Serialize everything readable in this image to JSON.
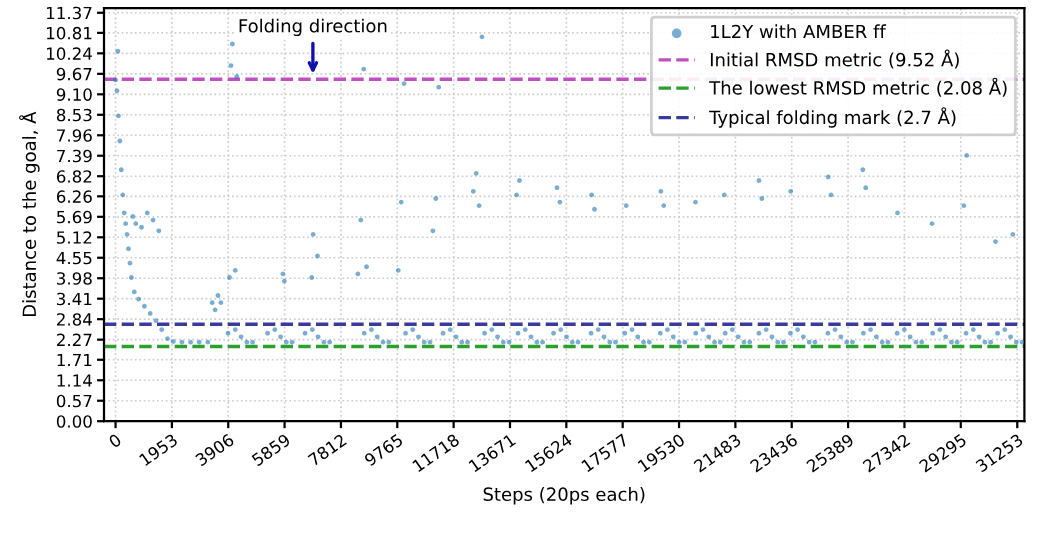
{
  "chart_data": {
    "type": "scatter",
    "xlabel": "Steps (20ps each)",
    "ylabel": "Distance to the goal, Å",
    "xlim": [
      -400,
      31500
    ],
    "ylim": [
      0,
      11.5
    ],
    "xticks": [
      0,
      1953,
      3906,
      5859,
      7812,
      9765,
      11718,
      13671,
      15624,
      17577,
      19530,
      21483,
      23436,
      25389,
      27342,
      29295,
      31253
    ],
    "yticks": [
      {
        "value": 0,
        "label": "0.00"
      },
      0.57,
      1.14,
      1.71,
      2.27,
      2.84,
      3.41,
      3.98,
      4.55,
      5.12,
      5.69,
      6.26,
      6.82,
      7.39,
      7.96,
      8.53,
      {
        "value": 9.1,
        "label": "9.10"
      },
      9.67,
      10.24,
      10.81,
      11.37
    ],
    "grid": true,
    "legend": "top right",
    "marker": "circle",
    "annotations": [
      {
        "text": "Folding direction",
        "x": 6840,
        "y": 9.52
      }
    ],
    "ref_lines": [
      {
        "axis": "y",
        "value": 9.52,
        "label": "Initial RMSD metric (9.52 Å)",
        "color": "#c050c0",
        "line_style": "dashed"
      },
      {
        "axis": "y",
        "value": 2.08,
        "label": "The lowest RMSD metric (2.08 Å)",
        "color": "#2ca02c",
        "line_style": "dashed"
      },
      {
        "axis": "y",
        "value": 2.7,
        "label": "Typical folding mark (2.7 Å)",
        "color": "#3a3a9a",
        "line_style": "dashed"
      }
    ],
    "series": [
      {
        "name": "1L2Y with AMBER ff",
        "color": "#1f77b4",
        "x": [
          0,
          50,
          100,
          150,
          200,
          250,
          300,
          350,
          400,
          450,
          500,
          550,
          650,
          800,
          1000,
          1200,
          1400,
          1600,
          1800,
          2000,
          2300,
          2600,
          2900,
          3200,
          600,
          700,
          900,
          1100,
          1300,
          1500,
          80,
          3350,
          3450,
          3550,
          3650,
          3950,
          4000,
          4050,
          4150,
          4200,
          5800,
          5850,
          6800,
          6850,
          7000,
          8400,
          8500,
          8600,
          8700,
          9800,
          9900,
          10000,
          11000,
          11100,
          11200,
          12400,
          12500,
          12600,
          12700,
          13900,
          14000,
          15300,
          15400,
          16500,
          16600,
          17700,
          18900,
          19000,
          20100,
          21100,
          22300,
          22400,
          23400,
          24700,
          24800,
          25900,
          26000,
          27100,
          28300,
          29400,
          29500,
          30500,
          30600,
          31100,
          3900,
          4150,
          4350,
          4550,
          4750,
          5270,
          5520,
          5720,
          5920,
          6120,
          6570,
          6820,
          7020,
          7220,
          7420,
          8620,
          8870,
          9070,
          9270,
          9470,
          10050,
          10300,
          10500,
          10700,
          10900,
          11350,
          11600,
          11800,
          12000,
          12200,
          12790,
          13040,
          13240,
          13440,
          13640,
          13950,
          14200,
          14400,
          14600,
          14800,
          15180,
          15430,
          15630,
          15830,
          16030,
          16480,
          16730,
          16930,
          17130,
          17330,
          17650,
          17900,
          18100,
          18300,
          18500,
          18880,
          19130,
          19330,
          19530,
          19730,
          20110,
          20360,
          20560,
          20760,
          20960,
          21130,
          21380,
          21580,
          21780,
          21980,
          22300,
          22550,
          22750,
          22950,
          23150,
          23390,
          23640,
          23840,
          24040,
          24240,
          24690,
          24940,
          25140,
          25340,
          25540,
          25920,
          26170,
          26370,
          26570,
          26770,
          27090,
          27340,
          27540,
          27740,
          27940,
          28320,
          28570,
          28770,
          28970,
          29170,
          29480,
          29730,
          29930,
          30130,
          30330,
          30570,
          30820,
          31020,
          31220,
          31420
        ],
        "values": [
          9.5,
          9.2,
          8.5,
          7.8,
          7.0,
          6.3,
          5.8,
          5.5,
          5.2,
          4.8,
          4.4,
          4.0,
          3.6,
          3.4,
          3.2,
          3.0,
          2.8,
          2.55,
          2.3,
          2.22,
          2.2,
          2.2,
          2.2,
          2.2,
          5.7,
          5.5,
          5.4,
          5.8,
          5.6,
          5.3,
          10.3,
          3.3,
          3.1,
          3.5,
          3.3,
          4.0,
          9.9,
          10.5,
          4.2,
          9.6,
          4.1,
          3.9,
          4.0,
          5.2,
          4.6,
          4.1,
          5.6,
          9.8,
          4.3,
          4.2,
          6.1,
          9.4,
          5.3,
          6.2,
          9.3,
          6.4,
          6.9,
          6.0,
          10.7,
          6.3,
          6.7,
          6.5,
          6.1,
          6.3,
          5.9,
          6.0,
          6.4,
          6.0,
          6.1,
          6.3,
          6.7,
          6.2,
          6.4,
          6.8,
          6.3,
          7.0,
          6.5,
          5.8,
          5.5,
          6.0,
          7.4,
          5.0,
          9.6,
          5.2,
          2.45,
          2.55,
          2.35,
          2.2,
          2.2,
          2.45,
          2.55,
          2.35,
          2.2,
          2.2,
          2.45,
          2.55,
          2.35,
          2.2,
          2.2,
          2.45,
          2.55,
          2.35,
          2.2,
          2.2,
          2.45,
          2.55,
          2.35,
          2.2,
          2.2,
          2.45,
          2.55,
          2.35,
          2.2,
          2.2,
          2.45,
          2.55,
          2.35,
          2.2,
          2.2,
          2.45,
          2.55,
          2.35,
          2.2,
          2.2,
          2.45,
          2.55,
          2.35,
          2.2,
          2.2,
          2.45,
          2.55,
          2.35,
          2.2,
          2.2,
          2.45,
          2.55,
          2.35,
          2.2,
          2.2,
          2.45,
          2.55,
          2.35,
          2.2,
          2.2,
          2.45,
          2.55,
          2.35,
          2.2,
          2.2,
          2.45,
          2.55,
          2.35,
          2.2,
          2.2,
          2.45,
          2.55,
          2.35,
          2.2,
          2.2,
          2.45,
          2.55,
          2.35,
          2.2,
          2.2,
          2.45,
          2.55,
          2.35,
          2.2,
          2.2,
          2.45,
          2.55,
          2.35,
          2.2,
          2.2,
          2.45,
          2.55,
          2.35,
          2.2,
          2.2,
          2.45,
          2.55,
          2.35,
          2.2,
          2.2,
          2.45,
          2.55,
          2.35,
          2.2,
          2.2,
          2.45,
          2.55,
          2.35,
          2.2,
          2.2
        ]
      }
    ]
  }
}
